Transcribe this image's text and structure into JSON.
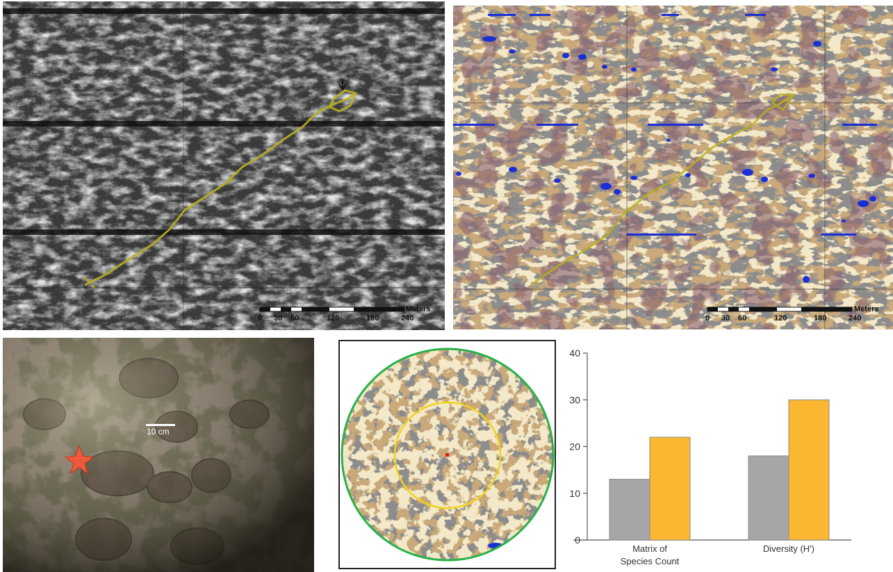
{
  "sonar_map": {
    "scale_unit": "Meters",
    "scale_ticks": [
      "0",
      "30",
      "60",
      "120",
      "180",
      "240"
    ],
    "track_color": "#b8b020"
  },
  "classified_map": {
    "scale_unit": "Meters",
    "scale_ticks": [
      "0",
      "30",
      "60",
      "120",
      "180",
      "240"
    ],
    "colors": {
      "sand": "#c9a97a",
      "gravel": "#8c8c8c",
      "cobble": "#f3e8c8",
      "boulder": "#1a2fd6",
      "mud": "#8a6470",
      "track": "#b8b020"
    }
  },
  "photo": {
    "scale_label": "10 cm"
  },
  "circle_map": {
    "outer_ring_color": "#27b24a",
    "inner_ring_color": "#f2d21a",
    "center_marker_color": "#e31b1b"
  },
  "chart_data": {
    "type": "bar",
    "categories": [
      "Matrix of\nSpecies Count",
      "Diversity (H')"
    ],
    "category_lines": [
      [
        "Matrix of",
        "Species Count"
      ],
      [
        "Diversity (H')"
      ]
    ],
    "series": [
      {
        "values": [
          13,
          18
        ],
        "color": "#a6a6a6"
      },
      {
        "values": [
          22,
          30
        ],
        "color": "#fbb731"
      }
    ],
    "ylim": [
      0,
      40
    ],
    "yticks": [
      "0",
      "10",
      "20",
      "30",
      "40"
    ]
  }
}
